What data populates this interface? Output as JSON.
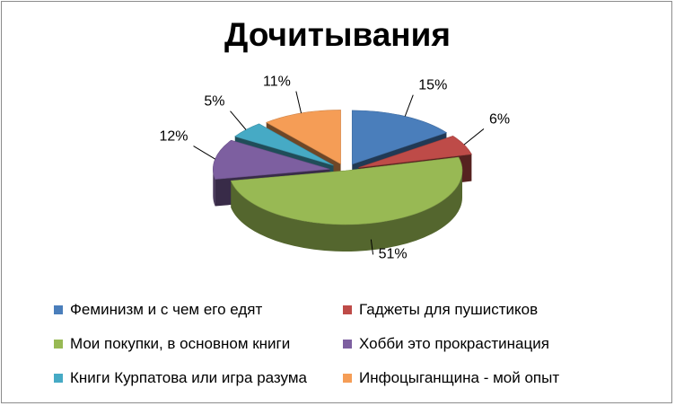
{
  "chart_data": {
    "type": "pie",
    "title": "Дочитывания",
    "categories": [
      "Феминизм и с чем его едят",
      "Гаджеты для пушистиков",
      "Мои покупки, в основном книги",
      "Хобби это прокрастинация",
      "Книги Курпатова или игра разума",
      "Инфоцыганщина - мой опыт"
    ],
    "values": [
      15,
      6,
      51,
      12,
      5,
      11
    ],
    "labels": [
      "15%",
      "6%",
      "51%",
      "12%",
      "5%",
      "11%"
    ],
    "colors": [
      "#4a7ebb",
      "#be4b48",
      "#98b954",
      "#7d5fa0",
      "#46aac5",
      "#f59d56"
    ],
    "legend_position": "bottom",
    "style": "3d-exploded"
  }
}
